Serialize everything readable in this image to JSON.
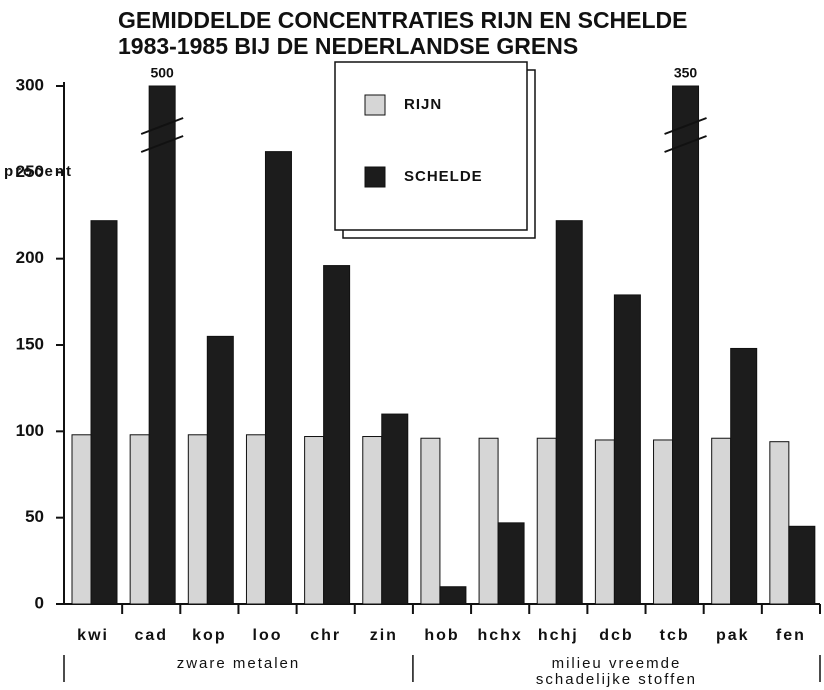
{
  "chart_data": {
    "type": "bar",
    "title": [
      "GEMIDDELDE CONCENTRATIES RIJN EN SCHELDE",
      "1983-1985 BIJ DE NEDERLANDSE GRENS"
    ],
    "y_label": "procent",
    "categories": [
      "kwi",
      "cad",
      "kop",
      "loo",
      "chr",
      "zin",
      "hob",
      "hchx",
      "hchj",
      "dcb",
      "tcb",
      "pak",
      "fen"
    ],
    "series": [
      {
        "name": "RIJN",
        "color": "#d6d6d6",
        "values": [
          98,
          98,
          98,
          98,
          97,
          97,
          96,
          96,
          96,
          95,
          95,
          96,
          94
        ]
      },
      {
        "name": "SCHELDE",
        "color": "#1c1c1c",
        "values": [
          222,
          500,
          155,
          262,
          196,
          110,
          10,
          47,
          222,
          179,
          350,
          148,
          45
        ],
        "value_labels": [
          null,
          "500",
          null,
          null,
          null,
          null,
          null,
          null,
          null,
          null,
          "350",
          null,
          null
        ]
      }
    ],
    "groups": [
      {
        "label": [
          "zware metalen"
        ],
        "start": 0,
        "end": 5
      },
      {
        "label": [
          "milieu vreemde",
          "schadelijke stoffen"
        ],
        "start": 6,
        "end": 12
      }
    ],
    "ylim": [
      0,
      300
    ],
    "yticks": [
      0,
      50,
      100,
      150,
      200,
      250,
      300
    ],
    "grid": false
  }
}
